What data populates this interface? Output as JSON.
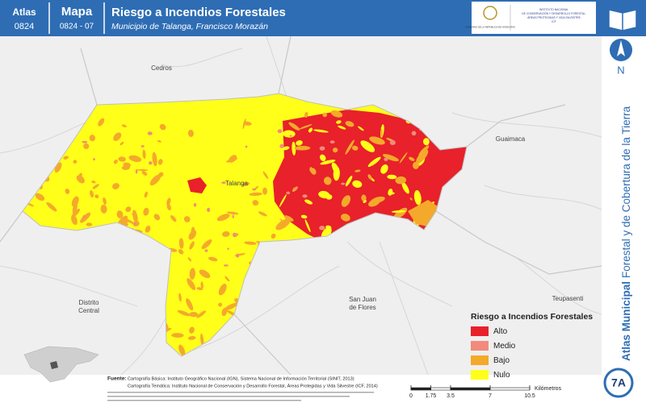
{
  "header": {
    "atlas_label": "Atlas",
    "atlas_code": "0824",
    "map_label": "Mapa",
    "map_code": "0824 - 07",
    "title": "Riesgo a Incendios Forestales",
    "subtitle": "Municipio de Talanga, Francisco Morazán",
    "logo_left": "GOBIERNO DE LA REPÚBLICA DE HONDURAS",
    "logo_right": [
      "INSTITUTO NACIONAL",
      "DE CONSERVACIÓN Y DESARROLLO FORESTAL,",
      "ÁREAS PROTEGIDAS Y VIDA SILVESTRE",
      "ICF"
    ]
  },
  "north": "N",
  "side_title": {
    "bold": "Atlas Municipal",
    "regular": "Forestal y de Cobertura de la Tierra"
  },
  "places": [
    {
      "lines": [
        "Cedros"
      ]
    },
    {
      "lines": [
        "Guaimaca"
      ]
    },
    {
      "lines": [
        "Talanga"
      ]
    },
    {
      "lines": [
        "San Juan",
        "de Flores"
      ]
    },
    {
      "lines": [
        "Distrito",
        "Central"
      ]
    },
    {
      "lines": [
        "Teupasenti"
      ]
    }
  ],
  "legend": {
    "title": "Riesgo a Incendios Forestales",
    "items": [
      {
        "label": "Alto",
        "color": "#e8212b"
      },
      {
        "label": "Medio",
        "color": "#f28b7c"
      },
      {
        "label": "Bajo",
        "color": "#f4a92b"
      },
      {
        "label": "Nulo",
        "color": "#ffff1a"
      }
    ]
  },
  "source": {
    "label": "Fuente:",
    "lines": [
      "Cartografía Básica: Instituto Geográfico Nacional (IGN), Sistema Nacional de Información Territorial (SINIT, 2013)",
      "Cartografía Temática: Instituto Nacional de Conservación y Desarrollo Forestal, Áreas Protegidas y Vida Silvestre (ICF, 2014)"
    ]
  },
  "scale_bar": {
    "ticks": [
      0,
      1.75,
      3.5,
      7,
      10.5
    ],
    "unit": "Kilómetros"
  },
  "badge": "7A"
}
